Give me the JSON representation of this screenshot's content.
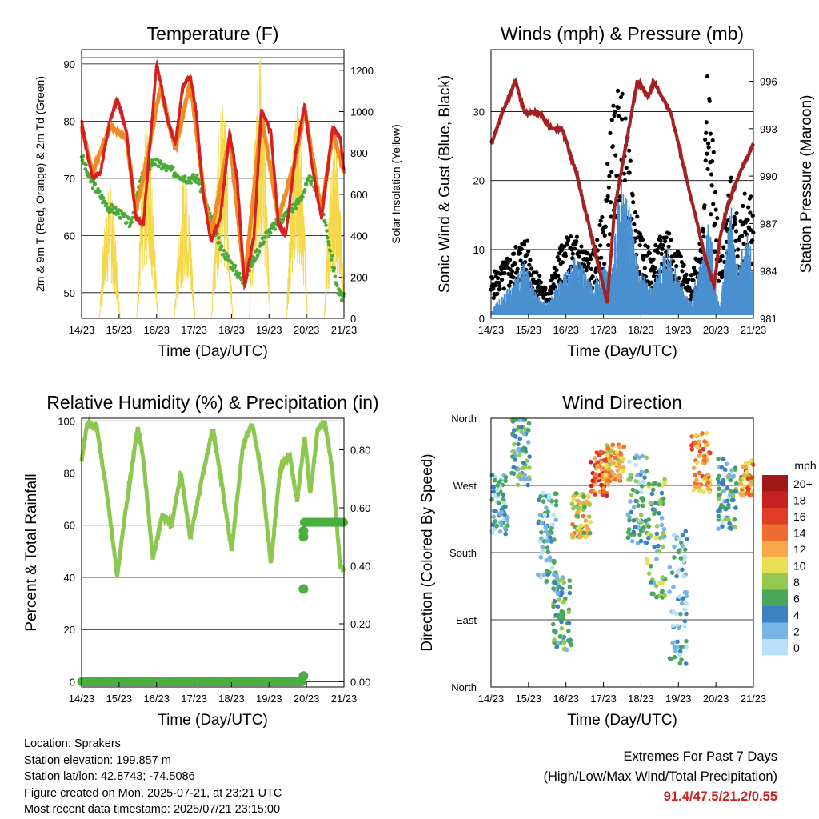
{
  "time_axis": {
    "ticks": [
      "14/23",
      "15/23",
      "16/23",
      "17/23",
      "18/23",
      "19/23",
      "20/23",
      "21/23"
    ],
    "label": "Time (Day/UTC)"
  },
  "chart_data": [
    {
      "id": "temperature",
      "type": "line",
      "title": "Temperature (F)",
      "xlabel": "Time (Day/UTC)",
      "ylabel": "2m & 9m T (Red, Orange) & 2m Td (Green)",
      "y2label": "Solar Insolation (Yellow)",
      "ylim": [
        45.5,
        92.5
      ],
      "y2lim": [
        0,
        1300
      ],
      "yticks": [
        50,
        60,
        70,
        80,
        90
      ],
      "y2ticks": [
        0,
        200,
        400,
        600,
        800,
        1000,
        1200
      ],
      "series": [
        {
          "name": "2m T",
          "color": "#d62020",
          "x": [
            0,
            0.15,
            0.3,
            0.5,
            0.75,
            0.95,
            1.2,
            1.45,
            1.65,
            1.85,
            2.0,
            2.1,
            2.3,
            2.5,
            2.7,
            2.9,
            3.05,
            3.25,
            3.45,
            3.7,
            3.95,
            4.15,
            4.35,
            4.6,
            4.8,
            5.05,
            5.25,
            5.45,
            5.7,
            5.95,
            6.15,
            6.4,
            6.7,
            6.9,
            7.0
          ],
          "y": [
            80,
            74,
            70,
            71,
            80,
            84,
            78,
            63,
            62,
            78,
            90,
            87,
            80,
            76,
            86,
            88,
            82,
            67,
            59,
            63,
            78,
            70,
            51,
            60,
            82,
            78,
            62,
            60,
            74,
            83,
            72,
            63,
            79,
            77,
            71
          ]
        },
        {
          "name": "9m T",
          "color": "#f08a24",
          "x": [
            0,
            0.3,
            0.75,
            1.2,
            1.45,
            1.85,
            2.1,
            2.5,
            2.9,
            3.25,
            3.45,
            3.95,
            4.35,
            4.8,
            5.25,
            5.7,
            5.95,
            6.4,
            6.7,
            7.0
          ],
          "y": [
            79,
            71,
            79,
            77,
            64,
            77,
            86,
            75,
            87,
            68,
            60,
            77,
            52,
            81,
            63,
            73,
            82,
            64,
            78,
            71
          ]
        },
        {
          "name": "2m Td",
          "color": "#4caa3c",
          "x": [
            0,
            0.2,
            0.4,
            0.7,
            1.0,
            1.3,
            1.6,
            1.9,
            2.2,
            2.5,
            2.8,
            3.1,
            3.4,
            3.7,
            4.0,
            4.3,
            4.6,
            4.9,
            5.2,
            5.5,
            5.8,
            6.1,
            6.4,
            6.7,
            6.85,
            7.0
          ],
          "y": [
            74,
            70,
            68,
            65,
            64,
            62,
            70,
            73,
            72,
            71,
            70,
            70,
            64,
            58,
            55,
            52,
            56,
            60,
            62,
            64,
            66,
            70,
            66,
            55,
            50,
            49
          ]
        },
        {
          "name": "Solar Insolation",
          "color": "#f5d84a",
          "axis": "y2",
          "peak_times": [
            0.75,
            1.75,
            2.75,
            3.75,
            4.75,
            5.75,
            6.75
          ],
          "peaks": [
            650,
            950,
            700,
            1050,
            1300,
            1050,
            850
          ]
        }
      ]
    },
    {
      "id": "winds",
      "type": "scatter",
      "title": "Winds (mph) & Pressure (mb)",
      "xlabel": "Time (Day/UTC)",
      "ylabel": "Sonic Wind & Gust (Blue, Black)",
      "y2label": "Station Pressure (Maroon)",
      "ylim": [
        0,
        39
      ],
      "y2lim": [
        981,
        998
      ],
      "yticks": [
        0,
        10,
        20,
        30
      ],
      "y2ticks": [
        981,
        984,
        987,
        990,
        993,
        996
      ],
      "series": [
        {
          "name": "Sonic Wind",
          "color": "#4a90d0",
          "x": [
            0,
            0.5,
            0.9,
            1.2,
            1.5,
            1.9,
            2.3,
            2.7,
            3.0,
            3.2,
            3.45,
            3.7,
            3.95,
            4.3,
            4.7,
            5.0,
            5.3,
            5.6,
            5.8,
            6.1,
            6.4,
            6.6,
            6.8,
            7.0
          ],
          "y": [
            1,
            4,
            7,
            3,
            2,
            5,
            8,
            4,
            7,
            5,
            18,
            14,
            6,
            4,
            9,
            5,
            2,
            7,
            13,
            1,
            14,
            6,
            11,
            8
          ]
        },
        {
          "name": "Gust",
          "color": "#000000",
          "x": [
            0,
            0.5,
            0.9,
            1.2,
            1.5,
            1.9,
            2.3,
            2.7,
            3.0,
            3.2,
            3.45,
            3.7,
            3.95,
            4.3,
            4.7,
            5.0,
            5.3,
            5.6,
            5.8,
            6.1,
            6.4,
            6.6,
            6.8,
            7.0
          ],
          "y": [
            6,
            9,
            12,
            7,
            4,
            11,
            12,
            9,
            15,
            28,
            34,
            23,
            12,
            9,
            14,
            10,
            5,
            13,
            37,
            8,
            20,
            13,
            19,
            16
          ]
        },
        {
          "name": "Station Pressure",
          "color": "#a52020",
          "axis": "y2",
          "x": [
            0,
            0.3,
            0.65,
            0.9,
            1.1,
            1.3,
            1.6,
            1.9,
            2.3,
            2.7,
            2.9,
            3.1,
            3.3,
            3.6,
            3.9,
            4.2,
            4.35,
            4.55,
            4.8,
            5.1,
            5.4,
            5.7,
            5.95,
            6.1,
            6.3,
            6.6,
            7.0
          ],
          "y": [
            992,
            994,
            996,
            994,
            994,
            994,
            993,
            993,
            990,
            986,
            984,
            982,
            988,
            992,
            996,
            995,
            996,
            995,
            994,
            991,
            988,
            985,
            983,
            986,
            988,
            990,
            992
          ]
        }
      ]
    },
    {
      "id": "humidity",
      "type": "line",
      "title": "Relative Humidity (%) & Precipitation (in)",
      "xlabel": "Time (Day/UTC)",
      "ylabel": "Percent & Total Rainfall",
      "y2label": "",
      "ylim": [
        -2,
        101
      ],
      "y2lim": [
        -0.018,
        0.909
      ],
      "yticks": [
        0,
        20,
        40,
        60,
        80,
        100
      ],
      "y2ticks": [
        0.0,
        0.2,
        0.4,
        0.6,
        0.8
      ],
      "y2ticklabels": [
        "0.00",
        "0.20",
        "0.40",
        "0.60",
        "0.80"
      ],
      "series": [
        {
          "name": "Relative Humidity",
          "color": "#8cc850",
          "x": [
            0,
            0.15,
            0.4,
            0.7,
            0.95,
            1.1,
            1.5,
            1.65,
            1.9,
            2.15,
            2.4,
            2.65,
            2.9,
            3.2,
            3.5,
            3.75,
            4.0,
            4.3,
            4.55,
            4.8,
            5.05,
            5.3,
            5.55,
            5.75,
            5.95,
            6.1,
            6.3,
            6.5,
            6.7,
            6.9,
            7.0
          ],
          "y": [
            85,
            99,
            98,
            70,
            40,
            58,
            98,
            85,
            47,
            64,
            60,
            80,
            55,
            77,
            97,
            75,
            50,
            90,
            99,
            80,
            45,
            82,
            87,
            69,
            94,
            72,
            97,
            99,
            80,
            44,
            43
          ]
        },
        {
          "name": "Total Precipitation",
          "color": "#4aae40",
          "axis": "y2",
          "x": [
            0,
            1,
            2,
            3,
            4,
            5,
            5.9,
            5.91,
            5.92,
            5.93,
            5.94,
            7.0
          ],
          "y": [
            0,
            0,
            0,
            0,
            0,
            0,
            0,
            0.32,
            0.5,
            0.52,
            0.55,
            0.55
          ]
        }
      ]
    },
    {
      "id": "direction",
      "type": "scatter",
      "title": "Wind Direction",
      "xlabel": "Time (Day/UTC)",
      "ylabel": "Direction (Colored By Speed)",
      "yticklabels": [
        "North",
        "East",
        "South",
        "West",
        "North"
      ],
      "ylim": [
        0,
        360
      ],
      "colorbar": {
        "unit": "mph",
        "labels": [
          "20+",
          "18",
          "16",
          "14",
          "12",
          "10",
          "8",
          "6",
          "4",
          "2",
          "0"
        ],
        "colors": [
          "#a01818",
          "#c82020",
          "#e03c28",
          "#f06c30",
          "#f8a848",
          "#e8e050",
          "#94c850",
          "#48a858",
          "#3a82c0",
          "#78b4e4",
          "#b8e0f8"
        ]
      },
      "clusters": [
        {
          "t": 0.2,
          "dir": 245,
          "spread": 40,
          "speed": 3
        },
        {
          "t": 0.8,
          "dir": 320,
          "spread": 50,
          "speed": 5
        },
        {
          "t": 1.5,
          "dir": 200,
          "spread": 60,
          "speed": 3
        },
        {
          "t": 1.9,
          "dir": 100,
          "spread": 50,
          "speed": 5
        },
        {
          "t": 2.4,
          "dir": 230,
          "spread": 30,
          "speed": 10
        },
        {
          "t": 2.9,
          "dir": 285,
          "spread": 30,
          "speed": 15
        },
        {
          "t": 3.3,
          "dir": 300,
          "spread": 25,
          "speed": 11
        },
        {
          "t": 3.9,
          "dir": 250,
          "spread": 60,
          "speed": 4
        },
        {
          "t": 4.4,
          "dir": 200,
          "spread": 80,
          "speed": 6
        },
        {
          "t": 5.0,
          "dir": 120,
          "spread": 90,
          "speed": 3
        },
        {
          "t": 5.6,
          "dir": 300,
          "spread": 40,
          "speed": 13
        },
        {
          "t": 6.3,
          "dir": 260,
          "spread": 50,
          "speed": 4
        },
        {
          "t": 6.9,
          "dir": 280,
          "spread": 25,
          "speed": 12
        }
      ]
    }
  ],
  "station_info": {
    "location": "Location: Sprakers",
    "elevation": "Station elevation: 199.857 m",
    "latlon": "Station lat/lon: 42.8743; -74.5086",
    "created": "Figure created on Mon, 2025-07-21, at 23:21 UTC",
    "recent": "Most recent data timestamp: 2025/07/21 23:15:00"
  },
  "extremes": {
    "line1": "Extremes For Past 7 Days",
    "line2": "(High/Low/Max Wind/Total Precipitation)",
    "values": "91.4/47.5/21.2/0.55"
  }
}
